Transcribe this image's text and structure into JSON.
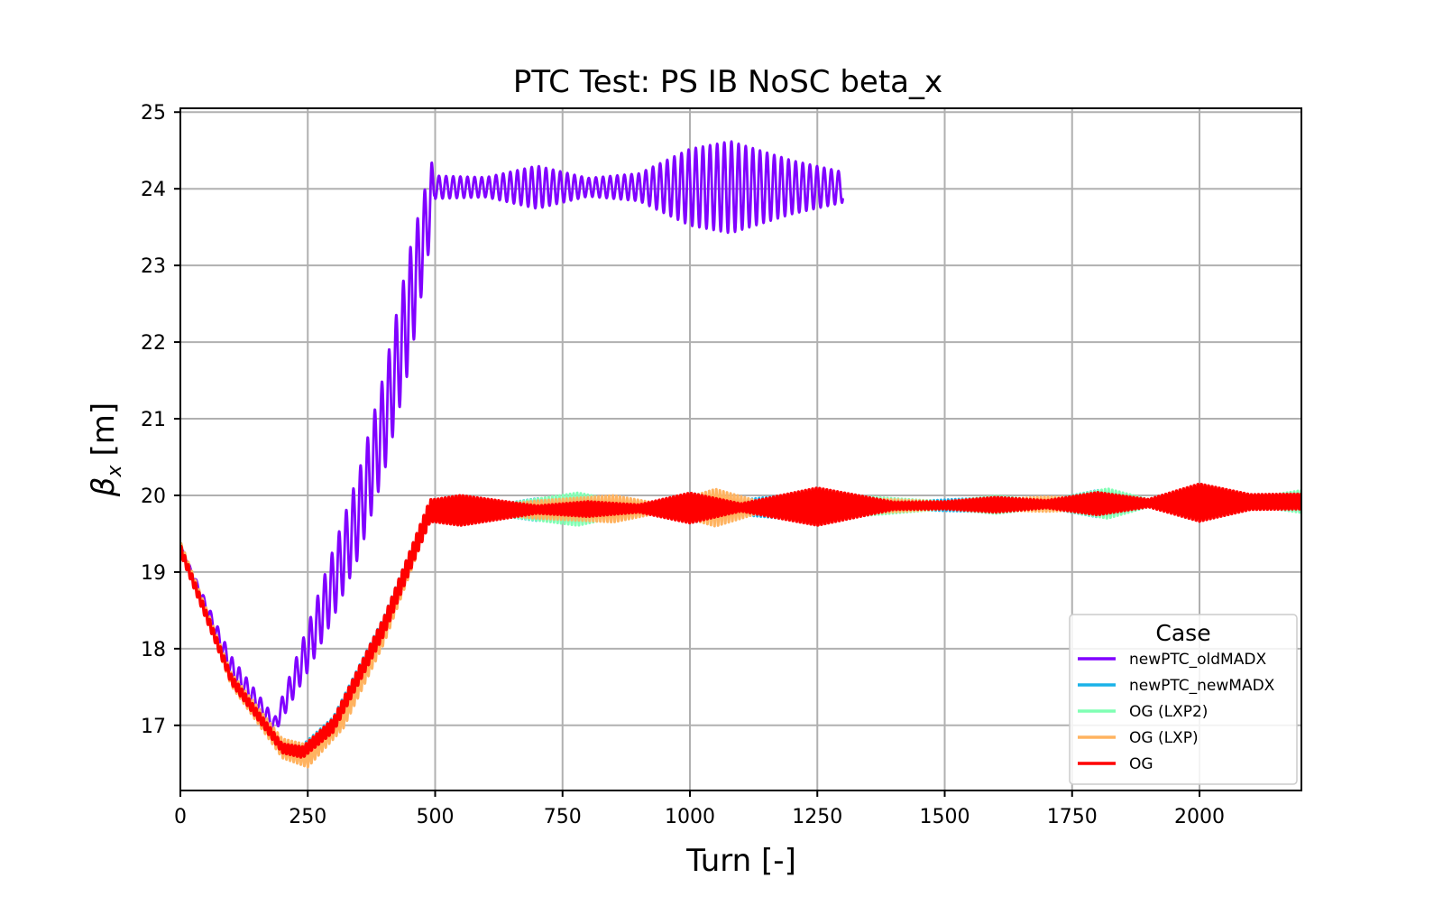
{
  "chart_data": {
    "type": "line",
    "title": "PTC Test: PS IB NoSC beta_x",
    "xlabel": "Turn [-]",
    "ylabel_symbol": "β",
    "ylabel_subscript": "x",
    "ylabel_unit": "[m]",
    "xlim": [
      0,
      2200
    ],
    "ylim": [
      16.15,
      25.05
    ],
    "x_ticks": [
      0,
      250,
      500,
      750,
      1000,
      1250,
      1500,
      1750,
      2000
    ],
    "x_tick_labels": [
      "0",
      "250",
      "500",
      "750",
      "1000",
      "1250",
      "1500",
      "1750",
      "2000"
    ],
    "y_ticks": [
      17,
      18,
      19,
      20,
      21,
      22,
      23,
      24,
      25
    ],
    "y_tick_labels": [
      "17",
      "18",
      "19",
      "20",
      "21",
      "22",
      "23",
      "24",
      "25"
    ],
    "grid": true,
    "legend": {
      "title": "Case",
      "placement": "lower-right",
      "entries": [
        "newPTC_oldMADX",
        "newPTC_newMADX",
        "OG (LXP2)",
        "OG (LXP)",
        "OG"
      ]
    },
    "series": [
      {
        "name": "newPTC_oldMADX",
        "color": "#8000ff",
        "oscillation_period": 14,
        "x_max": 1300,
        "min_envelope": {
          "x": [
            0,
            100,
            185,
            250,
            300,
            350,
            400,
            450,
            493,
            500,
            1000,
            1300
          ],
          "y": [
            19.35,
            17.6,
            16.9,
            17.7,
            18.4,
            19.2,
            20.3,
            21.7,
            23.4,
            23.95,
            23.45,
            23.95
          ]
        },
        "max_envelope": {
          "x": [
            0,
            100,
            185,
            250,
            300,
            350,
            400,
            450,
            493,
            500,
            1000,
            1300
          ],
          "y": [
            19.35,
            17.9,
            17.1,
            18.3,
            19.3,
            20.3,
            21.6,
            23.2,
            24.35,
            24.2,
            24.65,
            24.2
          ]
        },
        "amplitude": {
          "x": [
            500,
            600,
            700,
            800,
            900,
            1000,
            1080,
            1200,
            1300
          ],
          "y": [
            0.15,
            0.13,
            0.28,
            0.12,
            0.18,
            0.5,
            0.6,
            0.35,
            0.2
          ]
        }
      },
      {
        "name": "newPTC_newMADX",
        "color": "#1ab2e8",
        "oscillation_period": 7,
        "x_max": 2200,
        "trend": {
          "x": [
            0,
            100,
            200,
            240,
            300,
            400,
            490,
            2200
          ],
          "y": [
            19.35,
            17.6,
            16.7,
            16.65,
            17.0,
            18.3,
            19.8,
            19.92
          ]
        },
        "amplitude": {
          "x": [
            0,
            500,
            600,
            700,
            800,
            900,
            1000,
            1100,
            1250,
            1400,
            1600,
            1700,
            1800,
            1900,
            2000,
            2100,
            2200
          ],
          "y": [
            0.05,
            0.15,
            0.05,
            0.15,
            0.1,
            0.05,
            0.2,
            0.1,
            0.2,
            0.05,
            0.1,
            0.05,
            0.18,
            0.05,
            0.2,
            0.1,
            0.1
          ]
        }
      },
      {
        "name": "OG (LXP2)",
        "color": "#80ffb4",
        "oscillation_period": 7,
        "x_max": 2200,
        "trend": {
          "x": [
            0,
            100,
            200,
            240,
            300,
            400,
            490,
            2200
          ],
          "y": [
            19.35,
            17.6,
            16.7,
            16.65,
            17.0,
            18.3,
            19.8,
            19.92
          ]
        },
        "amplitude": {
          "x": [
            0,
            500,
            600,
            780,
            900,
            1000,
            1100,
            1300,
            1500,
            1600,
            1700,
            1820,
            1900,
            2000,
            2100,
            2200
          ],
          "y": [
            0.05,
            0.12,
            0.05,
            0.22,
            0.05,
            0.12,
            0.05,
            0.15,
            0.05,
            0.12,
            0.05,
            0.2,
            0.05,
            0.15,
            0.05,
            0.15
          ]
        }
      },
      {
        "name": "OG (LXP)",
        "color": "#ffb360",
        "oscillation_period": 7,
        "x_max": 2200,
        "trend": {
          "x": [
            0,
            100,
            200,
            250,
            320,
            400,
            490,
            2200
          ],
          "y": [
            19.35,
            17.6,
            16.7,
            16.6,
            17.1,
            18.2,
            19.8,
            19.92
          ]
        },
        "amplitude": {
          "x": [
            0,
            250,
            500,
            600,
            700,
            850,
            950,
            1050,
            1150,
            1300,
            1500,
            1700,
            1900,
            2000,
            2100,
            2200
          ],
          "y": [
            0.05,
            0.15,
            0.12,
            0.05,
            0.12,
            0.18,
            0.05,
            0.25,
            0.05,
            0.12,
            0.05,
            0.1,
            0.05,
            0.15,
            0.05,
            0.1
          ]
        }
      },
      {
        "name": "OG",
        "color": "#ff0000",
        "oscillation_period": 7,
        "x_max": 2200,
        "trend": {
          "x": [
            0,
            100,
            200,
            240,
            300,
            400,
            490,
            2200
          ],
          "y": [
            19.3,
            17.6,
            16.7,
            16.65,
            17.0,
            18.3,
            19.8,
            19.92
          ]
        },
        "amplitude": {
          "x": [
            0,
            200,
            500,
            550,
            700,
            800,
            900,
            1000,
            1100,
            1250,
            1400,
            1500,
            1600,
            1700,
            1800,
            1900,
            2000,
            2100,
            2200
          ],
          "y": [
            0.06,
            0.06,
            0.15,
            0.2,
            0.05,
            0.1,
            0.05,
            0.2,
            0.05,
            0.25,
            0.05,
            0.05,
            0.1,
            0.05,
            0.15,
            0.05,
            0.25,
            0.1,
            0.1
          ]
        }
      }
    ]
  }
}
